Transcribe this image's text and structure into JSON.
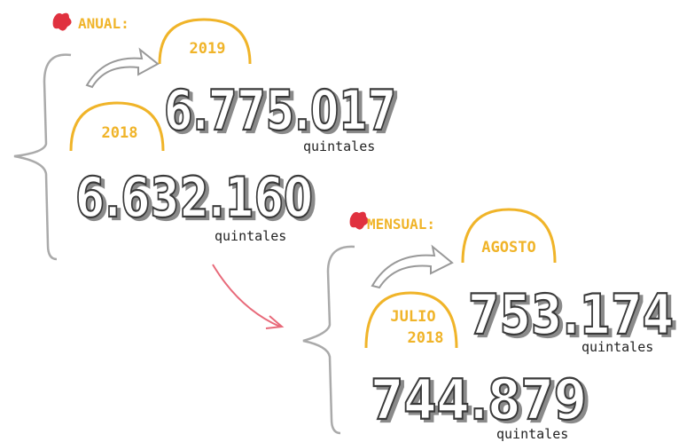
{
  "annual": {
    "label": "ANUAL:",
    "current": {
      "period": "2019",
      "value": "6.775.017",
      "unit": "quintales"
    },
    "previous": {
      "period": "2018",
      "value": "6.632.160",
      "unit": "quintales"
    }
  },
  "monthly": {
    "label": "MENSUAL:",
    "current": {
      "period": "AGOSTO",
      "value": "753.174",
      "unit": "quintales"
    },
    "previous": {
      "period_lines": [
        "JULIO",
        "2018"
      ],
      "value": "744.879",
      "unit": "quintales"
    }
  }
}
